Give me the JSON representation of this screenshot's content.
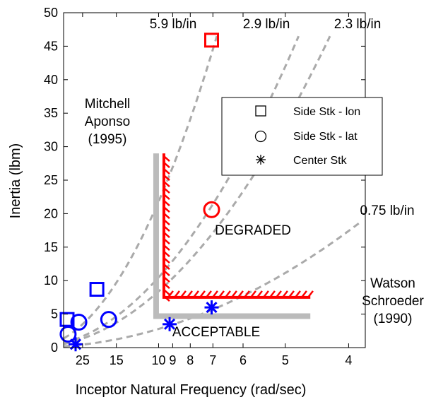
{
  "chart_data": {
    "type": "scatter",
    "title": "",
    "xlabel": "Inceptor Natural Frequency (rad/sec)",
    "ylabel": "Inertia (lbm)",
    "x_scale": "reciprocal",
    "xlim": [
      40,
      3.8
    ],
    "ylim": [
      0,
      50
    ],
    "grid": false,
    "legend_position": "top-right",
    "x_ticks": [
      {
        "value": 25,
        "label": "25"
      },
      {
        "value": 15,
        "label": "15"
      },
      {
        "value": 10,
        "label": "10"
      },
      {
        "value": 9,
        "label": "9"
      },
      {
        "value": 8,
        "label": "8"
      },
      {
        "value": 7,
        "label": "7"
      },
      {
        "value": 6,
        "label": "6"
      },
      {
        "value": 5,
        "label": "5"
      },
      {
        "value": 4,
        "label": "4"
      }
    ],
    "y_ticks": [
      0,
      5,
      10,
      15,
      20,
      25,
      30,
      35,
      40,
      45,
      50
    ],
    "series": [
      {
        "name": "Side Stk - lon",
        "marker": "square",
        "points": [
          {
            "x": 7.05,
            "y": 45.9,
            "color": "#ff0000"
          },
          {
            "x": 19.5,
            "y": 8.7,
            "color": "#0000ff"
          },
          {
            "x": 36.0,
            "y": 4.2,
            "color": "#0000ff"
          }
        ]
      },
      {
        "name": "Side Stk - lat",
        "marker": "circle",
        "points": [
          {
            "x": 7.05,
            "y": 20.6,
            "color": "#ff0000"
          },
          {
            "x": 16.5,
            "y": 4.2,
            "color": "#0000ff"
          },
          {
            "x": 27.0,
            "y": 3.8,
            "color": "#0000ff"
          },
          {
            "x": 35.0,
            "y": 2.0,
            "color": "#0000ff"
          }
        ]
      },
      {
        "name": "Center Stk",
        "marker": "asterisk",
        "points": [
          {
            "x": 7.05,
            "y": 6.0,
            "color": "#0000ff"
          },
          {
            "x": 9.2,
            "y": 3.5,
            "color": "#0000ff"
          },
          {
            "x": 29.0,
            "y": 0.5,
            "color": "#0000ff"
          }
        ]
      }
    ],
    "stiffness_lines": [
      {
        "label": "5.9 lb/in",
        "end": {
          "x": 6.85,
          "y": 46.5
        }
      },
      {
        "label": "2.9 lb/in",
        "end": {
          "x": 4.75,
          "y": 46.5
        }
      },
      {
        "label": "2.3 lb/in",
        "end": {
          "x": 4.25,
          "y": 46.5
        }
      },
      {
        "label": "0.75 lb/in",
        "end": {
          "x": 3.85,
          "y": 18.8
        }
      }
    ],
    "boundaries": [
      {
        "name": "Mitchell Aponso (1995)",
        "color": "#bbbbbb",
        "points": [
          {
            "x": 10.2,
            "y": 29
          },
          {
            "x": 10.2,
            "y": 4.7
          },
          {
            "x": 4.55,
            "y": 4.7
          }
        ]
      },
      {
        "name": "Watson Schroeder (1990)",
        "color": "#ff0000",
        "hatched": true,
        "points": [
          {
            "x": 9.6,
            "y": 29
          },
          {
            "x": 9.6,
            "y": 7.5
          },
          {
            "x": 4.55,
            "y": 7.5
          }
        ]
      }
    ],
    "annotations": {
      "mitchell_1": "Mitchell",
      "mitchell_2": "Aponso",
      "mitchell_3": "(1995)",
      "watson_1": "Watson",
      "watson_2": "Schroeder",
      "watson_3": "(1990)",
      "degraded": "DEGRADED",
      "acceptable": "ACCEPTABLE"
    }
  }
}
